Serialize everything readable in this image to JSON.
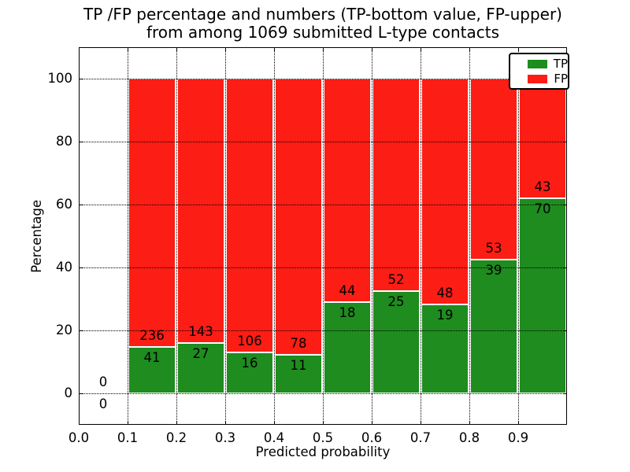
{
  "chart_data": {
    "type": "bar",
    "stacked": true,
    "bars_normalized": "each nonzero bin scaled to 100%, TP segment bottom / FP segment top",
    "title_lines": [
      "TP /FP percentage and numbers (TP-bottom value, FP-upper)",
      "from among 1069 submitted L-type contacts"
    ],
    "xlabel": "Predicted probability",
    "ylabel": "Percentage",
    "xlim": [
      0.0,
      1.0
    ],
    "ylim": [
      -10,
      110
    ],
    "xticks": [
      "0.0",
      "0.1",
      "0.2",
      "0.3",
      "0.4",
      "0.5",
      "0.6",
      "0.7",
      "0.8",
      "0.9"
    ],
    "yticks": [
      0,
      20,
      40,
      60,
      80,
      100
    ],
    "grid": "dotted black, both axes, drawn above bars",
    "bin_width": 0.1,
    "bins": [
      {
        "range": [
          0.0,
          0.1
        ],
        "tp": 0,
        "fp": 0
      },
      {
        "range": [
          0.1,
          0.2
        ],
        "tp": 41,
        "fp": 236
      },
      {
        "range": [
          0.2,
          0.3
        ],
        "tp": 27,
        "fp": 143
      },
      {
        "range": [
          0.3,
          0.4
        ],
        "tp": 16,
        "fp": 106
      },
      {
        "range": [
          0.4,
          0.5
        ],
        "tp": 11,
        "fp": 78
      },
      {
        "range": [
          0.5,
          0.6
        ],
        "tp": 18,
        "fp": 44
      },
      {
        "range": [
          0.6,
          0.7
        ],
        "tp": 25,
        "fp": 52
      },
      {
        "range": [
          0.7,
          0.8
        ],
        "tp": 19,
        "fp": 48
      },
      {
        "range": [
          0.8,
          0.9
        ],
        "tp": 39,
        "fp": 53
      },
      {
        "range": [
          0.9,
          1.0
        ],
        "tp": 70,
        "fp": 43
      }
    ],
    "colors": {
      "tp": "#1e8c1e",
      "fp": "#fc1d15",
      "axis": "#000000",
      "background": "#ffffff"
    },
    "legend": {
      "position": "upper right",
      "entries": [
        {
          "label": "TP",
          "color": "#1e8c1e"
        },
        {
          "label": "FP",
          "color": "#fc1d15"
        }
      ]
    }
  }
}
